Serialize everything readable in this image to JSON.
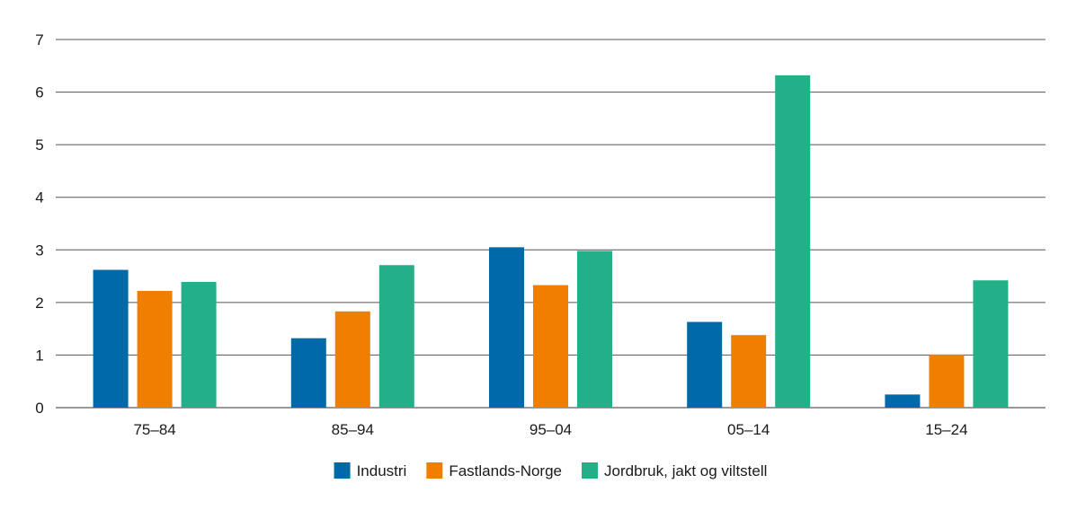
{
  "chart_data": {
    "type": "bar",
    "title": "",
    "xlabel": "",
    "ylabel": "",
    "categories": [
      "75–84",
      "85–94",
      "95–04",
      "05–14",
      "15–24"
    ],
    "series": [
      {
        "name": "Industri",
        "color": "#0069a8",
        "values": [
          2.62,
          1.32,
          3.05,
          1.63,
          0.25
        ]
      },
      {
        "name": "Fastlands-Norge",
        "color": "#f07f00",
        "values": [
          2.22,
          1.83,
          2.33,
          1.38,
          1.01
        ]
      },
      {
        "name": "Jordbruk, jakt og viltstell",
        "color": "#23b088",
        "values": [
          2.39,
          2.71,
          2.98,
          6.32,
          2.42
        ]
      }
    ],
    "ylim": [
      0,
      7
    ],
    "yticks": [
      0,
      1,
      2,
      3,
      4,
      5,
      6,
      7
    ],
    "grid": true,
    "legend_position": "bottom"
  }
}
